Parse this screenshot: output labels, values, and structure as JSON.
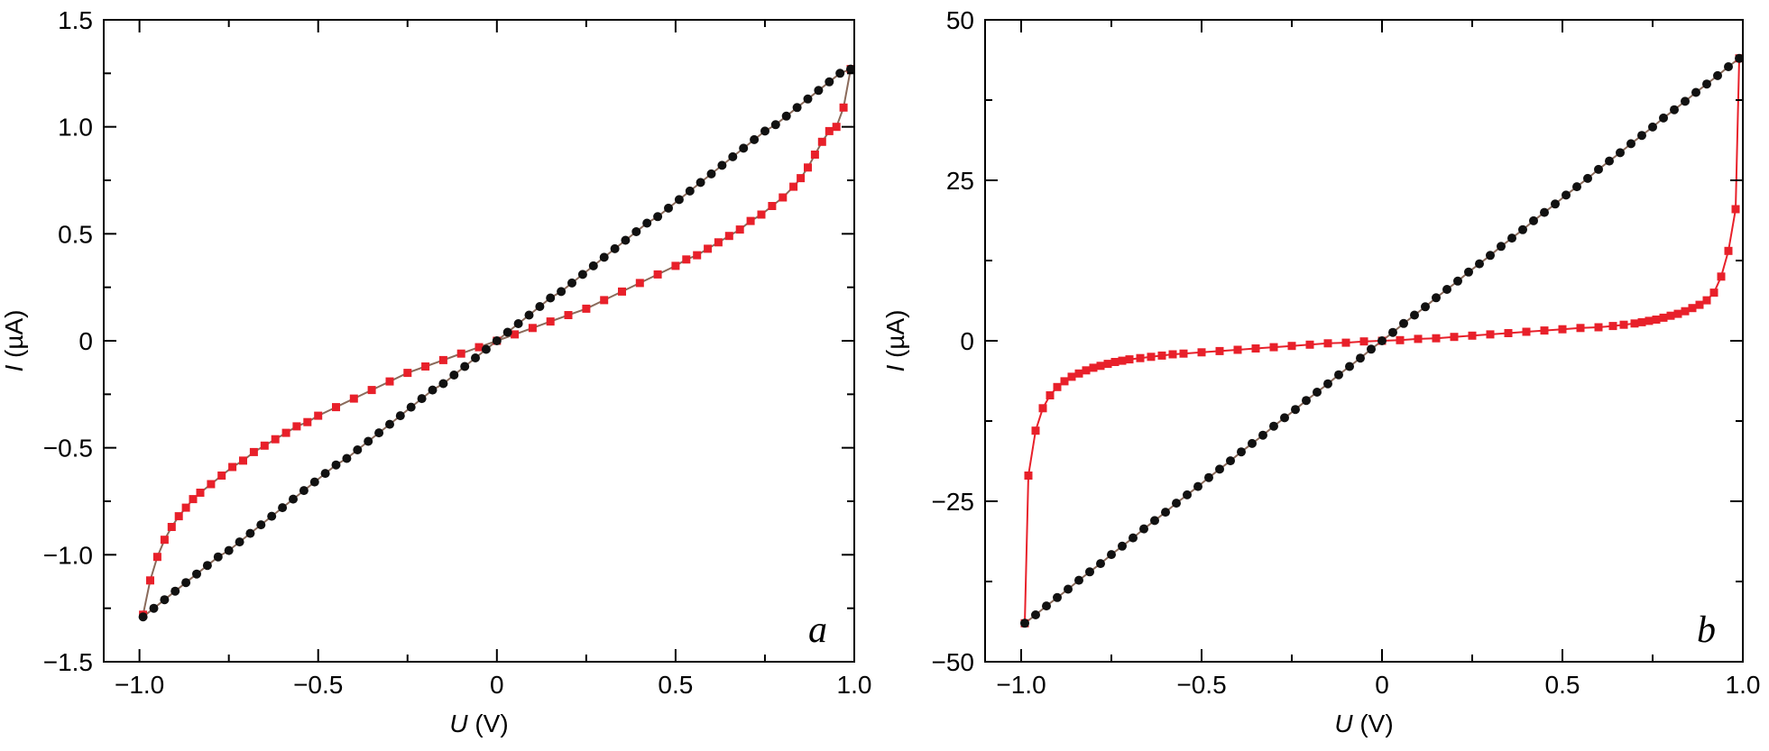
{
  "colors": {
    "red_series": "#e8202a",
    "black_series": "#111111",
    "connector_a": "#8a6a5a",
    "connector_b": "#e8202a"
  },
  "chart_data": [
    {
      "type": "line",
      "panel_label": "a",
      "xlabel_var": "U",
      "xlabel_unit": " (V)",
      "ylabel_var": "I",
      "ylabel_unit": " (µA)",
      "xlim": [
        -1.1,
        1.0
      ],
      "ylim": [
        -1.5,
        1.5
      ],
      "x_ticks": [
        -1.0,
        -0.5,
        0,
        0.5,
        1.0
      ],
      "x_tick_labels": [
        "−1.0",
        "−0.5",
        "0",
        "0.5",
        "1.0"
      ],
      "y_ticks": [
        -1.5,
        -1.0,
        -0.5,
        0,
        0.5,
        1.0,
        1.5
      ],
      "y_tick_labels": [
        "−1.5",
        "−1.0",
        "−0.5",
        "0",
        "0.5",
        "1.0",
        "1.5"
      ],
      "grid": false,
      "series": [
        {
          "marker": "square",
          "color": "#e8202a",
          "x": [
            -0.99,
            -0.97,
            -0.95,
            -0.93,
            -0.91,
            -0.89,
            -0.87,
            -0.85,
            -0.83,
            -0.8,
            -0.77,
            -0.74,
            -0.71,
            -0.68,
            -0.65,
            -0.62,
            -0.59,
            -0.56,
            -0.53,
            -0.5,
            -0.45,
            -0.4,
            -0.35,
            -0.3,
            -0.25,
            -0.2,
            -0.15,
            -0.1,
            -0.05,
            0.0,
            0.05,
            0.1,
            0.15,
            0.2,
            0.25,
            0.3,
            0.35,
            0.4,
            0.45,
            0.5,
            0.53,
            0.56,
            0.59,
            0.62,
            0.65,
            0.68,
            0.71,
            0.74,
            0.77,
            0.8,
            0.83,
            0.85,
            0.87,
            0.89,
            0.91,
            0.93,
            0.95,
            0.97,
            0.99
          ],
          "y": [
            -1.28,
            -1.12,
            -1.01,
            -0.93,
            -0.87,
            -0.82,
            -0.78,
            -0.74,
            -0.71,
            -0.67,
            -0.63,
            -0.59,
            -0.56,
            -0.52,
            -0.49,
            -0.46,
            -0.43,
            -0.4,
            -0.38,
            -0.35,
            -0.31,
            -0.27,
            -0.23,
            -0.19,
            -0.15,
            -0.12,
            -0.09,
            -0.06,
            -0.03,
            0.0,
            0.03,
            0.06,
            0.09,
            0.12,
            0.15,
            0.19,
            0.23,
            0.27,
            0.31,
            0.35,
            0.38,
            0.4,
            0.43,
            0.46,
            0.49,
            0.52,
            0.56,
            0.59,
            0.63,
            0.67,
            0.72,
            0.76,
            0.81,
            0.87,
            0.93,
            0.98,
            1.0,
            1.09,
            1.27
          ]
        },
        {
          "marker": "circle",
          "color": "#111111",
          "x": [
            -0.99,
            -0.96,
            -0.93,
            -0.9,
            -0.87,
            -0.84,
            -0.81,
            -0.78,
            -0.75,
            -0.72,
            -0.69,
            -0.66,
            -0.63,
            -0.6,
            -0.57,
            -0.54,
            -0.51,
            -0.48,
            -0.45,
            -0.42,
            -0.39,
            -0.36,
            -0.33,
            -0.3,
            -0.27,
            -0.24,
            -0.21,
            -0.18,
            -0.15,
            -0.12,
            -0.09,
            -0.06,
            -0.03,
            0.0,
            0.03,
            0.06,
            0.09,
            0.12,
            0.15,
            0.18,
            0.21,
            0.24,
            0.27,
            0.3,
            0.33,
            0.36,
            0.39,
            0.42,
            0.45,
            0.48,
            0.51,
            0.54,
            0.57,
            0.6,
            0.63,
            0.66,
            0.69,
            0.72,
            0.75,
            0.78,
            0.81,
            0.84,
            0.87,
            0.9,
            0.93,
            0.96,
            0.99
          ],
          "y": [
            -1.29,
            -1.25,
            -1.21,
            -1.17,
            -1.13,
            -1.09,
            -1.05,
            -1.01,
            -0.98,
            -0.94,
            -0.9,
            -0.86,
            -0.82,
            -0.78,
            -0.74,
            -0.7,
            -0.66,
            -0.62,
            -0.58,
            -0.55,
            -0.51,
            -0.47,
            -0.43,
            -0.39,
            -0.35,
            -0.31,
            -0.27,
            -0.23,
            -0.2,
            -0.16,
            -0.12,
            -0.08,
            -0.04,
            0.0,
            0.04,
            0.08,
            0.12,
            0.16,
            0.2,
            0.23,
            0.27,
            0.31,
            0.35,
            0.39,
            0.43,
            0.47,
            0.51,
            0.55,
            0.58,
            0.62,
            0.66,
            0.7,
            0.74,
            0.78,
            0.82,
            0.86,
            0.9,
            0.94,
            0.98,
            1.01,
            1.05,
            1.09,
            1.13,
            1.17,
            1.21,
            1.25,
            1.27
          ]
        }
      ]
    },
    {
      "type": "line",
      "panel_label": "b",
      "xlabel_var": "U",
      "xlabel_unit": " (V)",
      "ylabel_var": "I",
      "ylabel_unit": " (µA)",
      "xlim": [
        -1.1,
        1.0
      ],
      "ylim": [
        -50,
        50
      ],
      "x_ticks": [
        -1.0,
        -0.5,
        0,
        0.5,
        1.0
      ],
      "x_tick_labels": [
        "−1.0",
        "−0.5",
        "0",
        "0.5",
        "1.0"
      ],
      "y_ticks": [
        -50,
        -25,
        0,
        25,
        50
      ],
      "y_tick_labels": [
        "−50",
        "−25",
        "0",
        "25",
        "50"
      ],
      "grid": false,
      "series": [
        {
          "marker": "square",
          "color": "#e8202a",
          "x": [
            -0.99,
            -0.98,
            -0.96,
            -0.94,
            -0.92,
            -0.9,
            -0.88,
            -0.86,
            -0.84,
            -0.82,
            -0.8,
            -0.78,
            -0.76,
            -0.74,
            -0.72,
            -0.7,
            -0.67,
            -0.64,
            -0.61,
            -0.58,
            -0.55,
            -0.5,
            -0.45,
            -0.4,
            -0.35,
            -0.3,
            -0.25,
            -0.2,
            -0.15,
            -0.1,
            -0.05,
            0.0,
            0.05,
            0.1,
            0.15,
            0.2,
            0.25,
            0.3,
            0.35,
            0.4,
            0.45,
            0.5,
            0.55,
            0.6,
            0.64,
            0.67,
            0.7,
            0.72,
            0.74,
            0.76,
            0.78,
            0.8,
            0.82,
            0.84,
            0.86,
            0.88,
            0.9,
            0.92,
            0.94,
            0.96,
            0.98,
            0.99
          ],
          "y": [
            -44,
            -21,
            -14,
            -10.5,
            -8.5,
            -7.2,
            -6.3,
            -5.6,
            -5.1,
            -4.6,
            -4.2,
            -3.9,
            -3.6,
            -3.3,
            -3.1,
            -2.9,
            -2.7,
            -2.5,
            -2.3,
            -2.1,
            -2.0,
            -1.8,
            -1.6,
            -1.4,
            -1.2,
            -1.0,
            -0.8,
            -0.6,
            -0.4,
            -0.3,
            -0.1,
            0.0,
            0.1,
            0.3,
            0.4,
            0.6,
            0.8,
            1.0,
            1.2,
            1.4,
            1.6,
            1.8,
            2.0,
            2.1,
            2.3,
            2.5,
            2.7,
            2.9,
            3.1,
            3.3,
            3.6,
            3.9,
            4.2,
            4.6,
            5.1,
            5.6,
            6.3,
            7.5,
            10,
            14,
            20.5,
            44
          ]
        },
        {
          "marker": "circle",
          "color": "#111111",
          "x": [
            -0.99,
            -0.96,
            -0.93,
            -0.9,
            -0.87,
            -0.84,
            -0.81,
            -0.78,
            -0.75,
            -0.72,
            -0.69,
            -0.66,
            -0.63,
            -0.6,
            -0.57,
            -0.54,
            -0.51,
            -0.48,
            -0.45,
            -0.42,
            -0.39,
            -0.36,
            -0.33,
            -0.3,
            -0.27,
            -0.24,
            -0.21,
            -0.18,
            -0.15,
            -0.12,
            -0.09,
            -0.06,
            -0.03,
            0.0,
            0.03,
            0.06,
            0.09,
            0.12,
            0.15,
            0.18,
            0.21,
            0.24,
            0.27,
            0.3,
            0.33,
            0.36,
            0.39,
            0.42,
            0.45,
            0.48,
            0.51,
            0.54,
            0.57,
            0.6,
            0.63,
            0.66,
            0.69,
            0.72,
            0.75,
            0.78,
            0.81,
            0.84,
            0.87,
            0.9,
            0.93,
            0.96,
            0.99
          ],
          "y": [
            -44,
            -42.7,
            -41.3,
            -40,
            -38.7,
            -37.3,
            -36,
            -34.7,
            -33.3,
            -32,
            -30.7,
            -29.3,
            -28,
            -26.7,
            -25.3,
            -24,
            -22.7,
            -21.3,
            -20,
            -18.7,
            -17.3,
            -16,
            -14.7,
            -13.3,
            -12,
            -10.7,
            -9.3,
            -8,
            -6.7,
            -5.3,
            -4,
            -2.7,
            -1.3,
            0,
            1.3,
            2.7,
            4,
            5.3,
            6.7,
            8,
            9.3,
            10.7,
            12,
            13.3,
            14.7,
            16,
            17.3,
            18.7,
            20,
            21.3,
            22.7,
            24,
            25.3,
            26.7,
            28,
            29.3,
            30.7,
            32,
            33.3,
            34.7,
            36,
            37.3,
            38.7,
            40,
            41.3,
            42.7,
            44
          ]
        }
      ]
    }
  ]
}
